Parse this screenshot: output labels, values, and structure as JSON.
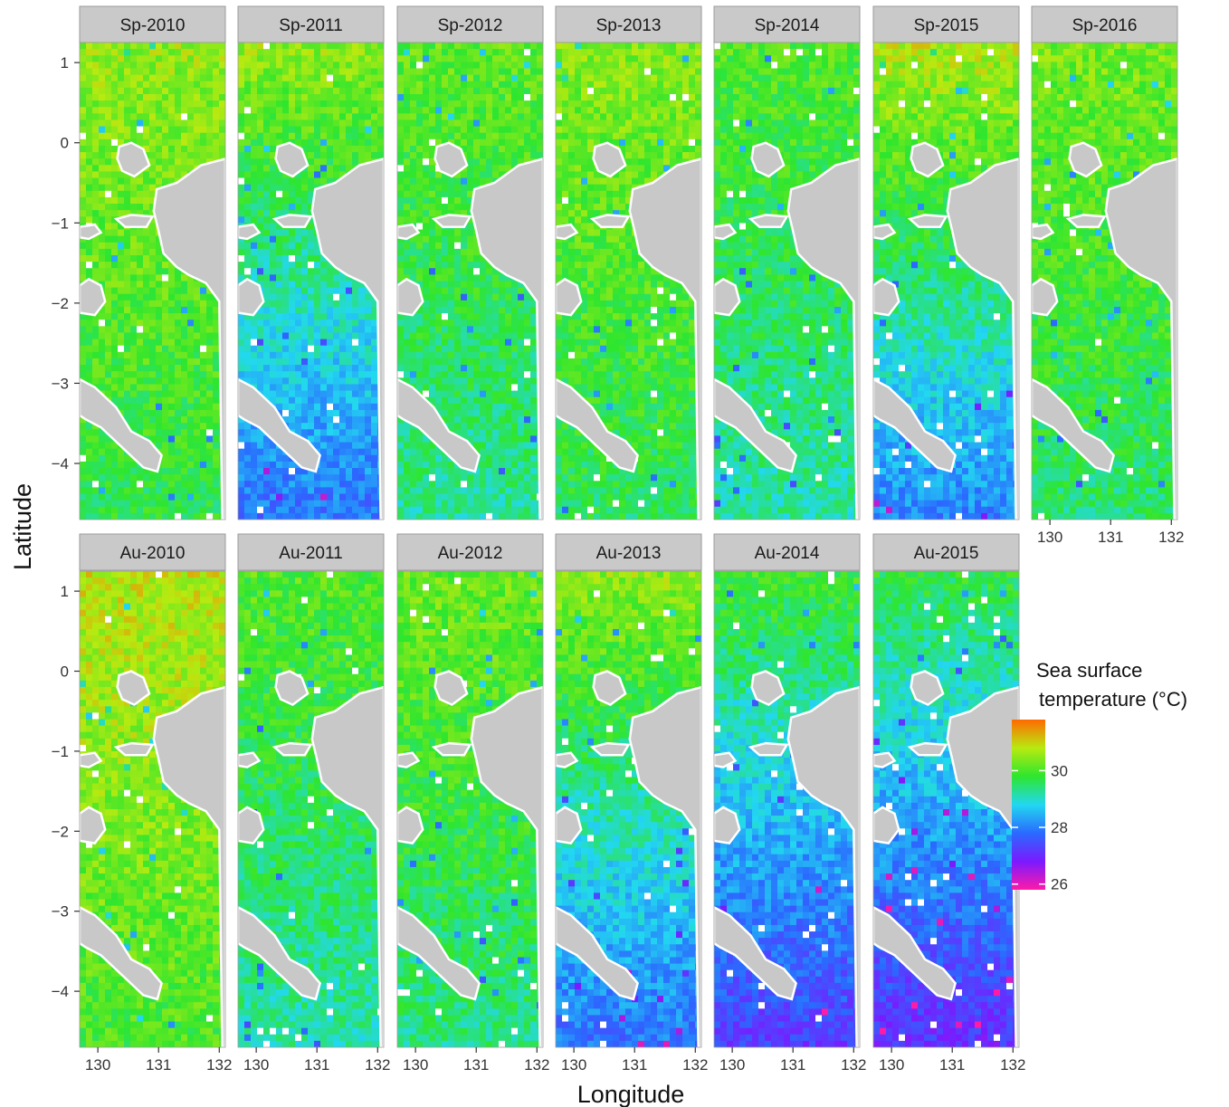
{
  "chart_data": {
    "type": "heatmap",
    "xlabel": "Longitude",
    "ylabel": "Latitude",
    "xlim": [
      129.7,
      132.1
    ],
    "ylim": [
      -4.7,
      1.25
    ],
    "x_ticks": [
      "130",
      "131",
      "132"
    ],
    "y_ticks": [
      "1",
      "0",
      "−1",
      "−2",
      "−3",
      "−4"
    ],
    "panels": [
      {
        "label": "Sp-2010",
        "mean_sst": 30.1
      },
      {
        "label": "Sp-2011",
        "mean_sst": 29.2
      },
      {
        "label": "Sp-2012",
        "mean_sst": 29.7
      },
      {
        "label": "Sp-2013",
        "mean_sst": 30.0
      },
      {
        "label": "Sp-2014",
        "mean_sst": 29.6
      },
      {
        "label": "Sp-2015",
        "mean_sst": 29.4
      },
      {
        "label": "Sp-2016",
        "mean_sst": 29.9
      },
      {
        "label": "Au-2010",
        "mean_sst": 30.4
      },
      {
        "label": "Au-2011",
        "mean_sst": 29.6
      },
      {
        "label": "Au-2012",
        "mean_sst": 29.8
      },
      {
        "label": "Au-2013",
        "mean_sst": 29.2
      },
      {
        "label": "Au-2014",
        "mean_sst": 28.6
      },
      {
        "label": "Au-2015",
        "mean_sst": 28.4
      }
    ],
    "legend": {
      "title_line1": "Sea surface",
      "title_line2": "temperature (°C)",
      "ticks": [
        "30",
        "28",
        "26"
      ],
      "range": [
        25.8,
        31.8
      ],
      "colors": [
        "#ff1aa8",
        "#7a1aff",
        "#2a6aff",
        "#22d8f0",
        "#2ee62e",
        "#b8ea10",
        "#ff6a00"
      ]
    },
    "land_color": "#c8c8c8",
    "strip_color": "#c9c9c9"
  }
}
